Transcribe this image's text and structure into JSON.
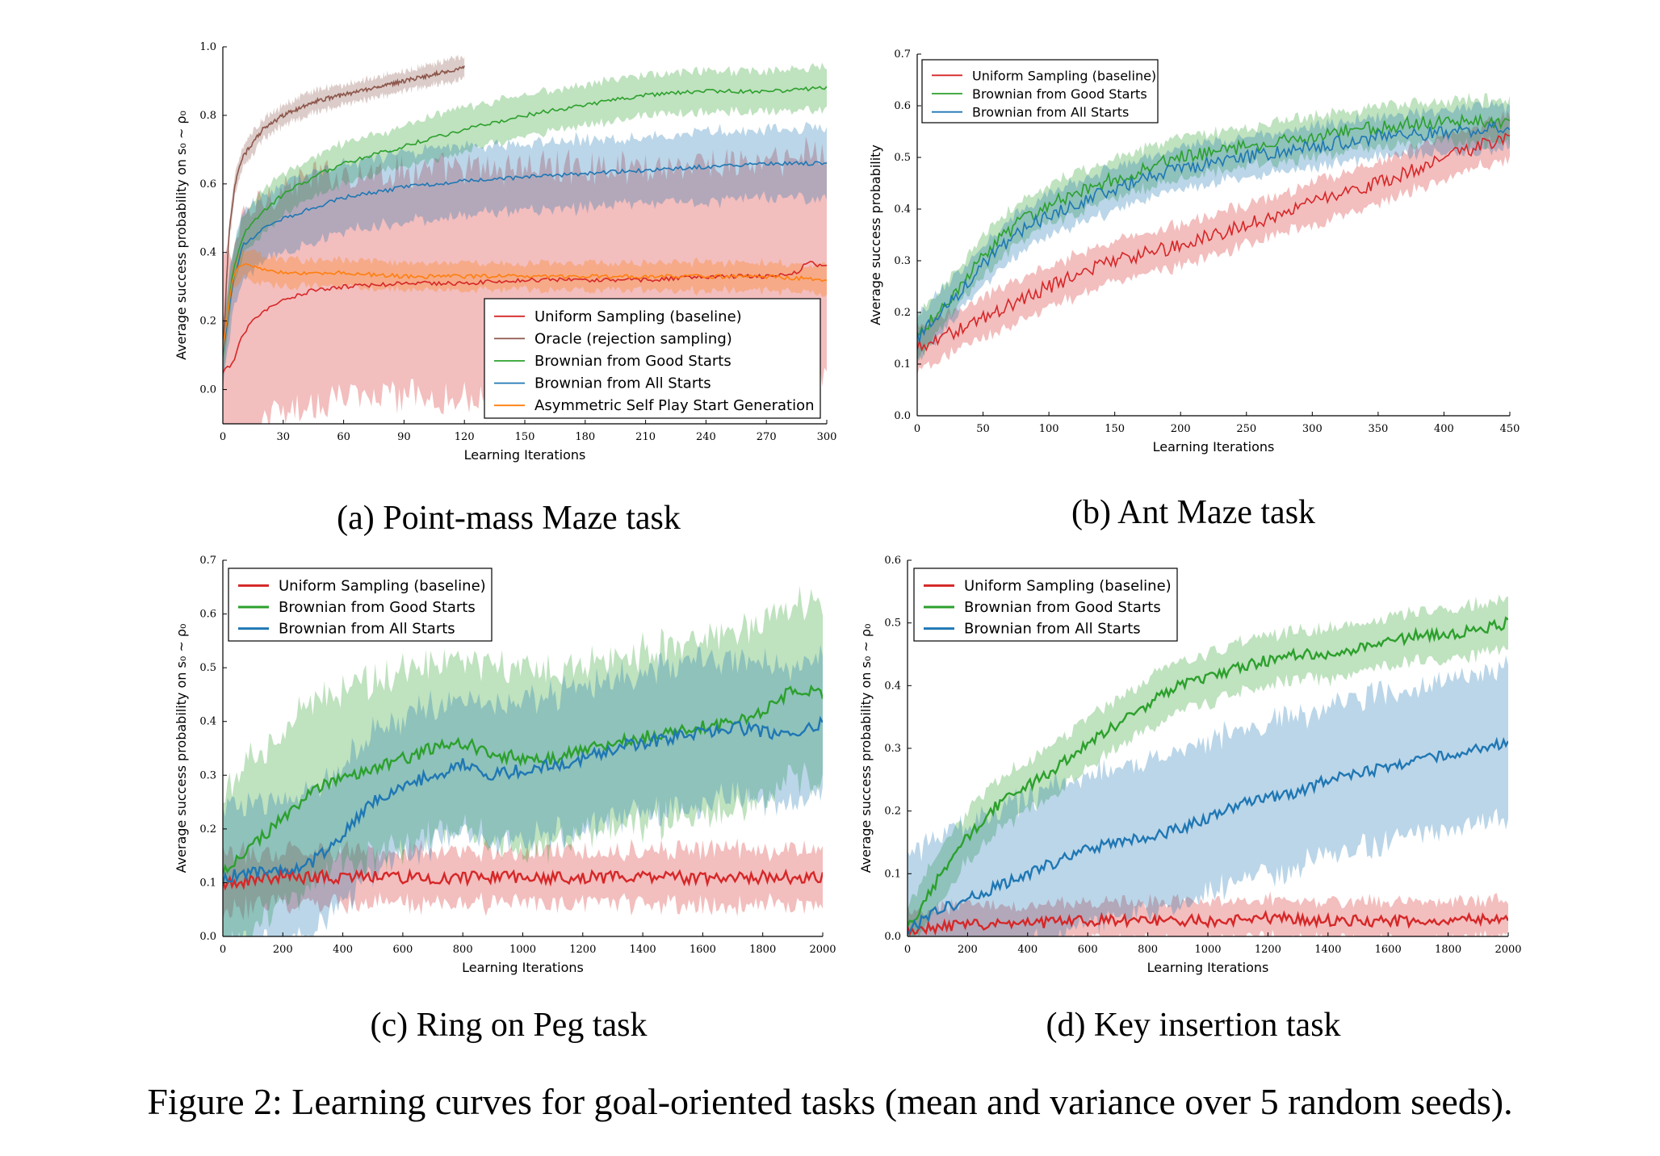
{
  "figure_caption": "Figure 2: Learning curves for goal-oriented tasks (mean and variance over 5 random seeds).",
  "colors": {
    "uniform": "#d62728",
    "oracle": "#8c564b",
    "good": "#2ca02c",
    "all": "#1f77b4",
    "asym": "#ff7f0e"
  },
  "chart_data": [
    {
      "id": "a",
      "type": "line",
      "caption": "(a) Point-mass Maze task",
      "xlabel": "Learning Iterations",
      "ylabel": "Average success probability on s₀ ~ ρ₀",
      "xlim": [
        0,
        300
      ],
      "ylim": [
        -0.1,
        1.0
      ],
      "xticks": [
        0,
        30,
        60,
        90,
        120,
        150,
        180,
        210,
        240,
        270,
        300
      ],
      "yticks": [
        0.0,
        0.2,
        0.4,
        0.6,
        0.8,
        1.0
      ],
      "ytick_labels": [
        "0.0",
        "0.2",
        "0.4",
        "0.6",
        "0.8",
        "1.0"
      ],
      "legend_position": "bottom-right",
      "series": [
        {
          "name": "Uniform Sampling (baseline)",
          "color_key": "uniform",
          "x": [
            0,
            5,
            10,
            15,
            20,
            30,
            45,
            60,
            90,
            120,
            150,
            180,
            210,
            240,
            270,
            285,
            290,
            300
          ],
          "values": [
            0.05,
            0.08,
            0.16,
            0.2,
            0.23,
            0.26,
            0.29,
            0.3,
            0.31,
            0.31,
            0.32,
            0.32,
            0.32,
            0.33,
            0.33,
            0.34,
            0.37,
            0.36
          ],
          "spread": 0.33
        },
        {
          "name": "Oracle (rejection sampling)",
          "color_key": "oracle",
          "x": [
            0,
            3,
            6,
            10,
            15,
            20,
            30,
            45,
            60,
            75,
            90,
            105,
            120
          ],
          "values": [
            0.1,
            0.45,
            0.6,
            0.68,
            0.72,
            0.76,
            0.8,
            0.84,
            0.86,
            0.88,
            0.9,
            0.92,
            0.94
          ],
          "spread": 0.03
        },
        {
          "name": "Brownian from Good Starts",
          "color_key": "good",
          "x": [
            0,
            5,
            10,
            20,
            30,
            45,
            60,
            90,
            120,
            150,
            180,
            210,
            240,
            270,
            300
          ],
          "values": [
            0.1,
            0.35,
            0.45,
            0.52,
            0.57,
            0.62,
            0.66,
            0.71,
            0.76,
            0.8,
            0.83,
            0.86,
            0.87,
            0.87,
            0.88
          ],
          "spread": 0.06
        },
        {
          "name": "Brownian from All Starts",
          "color_key": "all",
          "x": [
            0,
            5,
            10,
            20,
            30,
            45,
            60,
            90,
            120,
            150,
            180,
            210,
            240,
            270,
            300
          ],
          "values": [
            0.1,
            0.32,
            0.42,
            0.47,
            0.5,
            0.53,
            0.56,
            0.59,
            0.61,
            0.62,
            0.63,
            0.64,
            0.65,
            0.66,
            0.66
          ],
          "spread": 0.1
        },
        {
          "name": "Asymmetric Self Play Start Generation",
          "color_key": "asym",
          "x": [
            0,
            5,
            10,
            20,
            30,
            60,
            90,
            120,
            150,
            180,
            210,
            240,
            270,
            300
          ],
          "values": [
            0.12,
            0.33,
            0.37,
            0.35,
            0.34,
            0.34,
            0.33,
            0.33,
            0.33,
            0.33,
            0.33,
            0.33,
            0.33,
            0.32
          ],
          "spread": 0.04
        }
      ]
    },
    {
      "id": "b",
      "type": "line",
      "caption": "(b) Ant Maze task",
      "xlabel": "Learning Iterations",
      "ylabel": "Average success probability",
      "xlim": [
        0,
        450
      ],
      "ylim": [
        0.0,
        0.7
      ],
      "xticks": [
        0,
        50,
        100,
        150,
        200,
        250,
        300,
        350,
        400,
        450
      ],
      "yticks": [
        0.0,
        0.1,
        0.2,
        0.3,
        0.4,
        0.5,
        0.6,
        0.7
      ],
      "ytick_labels": [
        "0.0",
        "0.1",
        "0.2",
        "0.3",
        "0.4",
        "0.5",
        "0.6",
        "0.7"
      ],
      "legend_position": "top-left",
      "series": [
        {
          "name": "Uniform Sampling (baseline)",
          "color_key": "uniform",
          "x": [
            0,
            50,
            100,
            150,
            200,
            250,
            300,
            350,
            400,
            450
          ],
          "values": [
            0.13,
            0.19,
            0.25,
            0.3,
            0.33,
            0.37,
            0.41,
            0.45,
            0.5,
            0.54
          ],
          "spread": 0.04
        },
        {
          "name": "Brownian from Good Starts",
          "color_key": "good",
          "x": [
            0,
            25,
            50,
            75,
            100,
            150,
            200,
            250,
            300,
            350,
            400,
            450
          ],
          "values": [
            0.15,
            0.23,
            0.31,
            0.37,
            0.41,
            0.46,
            0.5,
            0.52,
            0.54,
            0.56,
            0.57,
            0.57
          ],
          "spread": 0.04
        },
        {
          "name": "Brownian from All Starts",
          "color_key": "all",
          "x": [
            0,
            25,
            50,
            75,
            100,
            150,
            200,
            250,
            300,
            350,
            400,
            450
          ],
          "values": [
            0.15,
            0.22,
            0.29,
            0.35,
            0.39,
            0.44,
            0.48,
            0.5,
            0.52,
            0.54,
            0.55,
            0.56
          ],
          "spread": 0.04
        }
      ]
    },
    {
      "id": "c",
      "type": "line",
      "caption": "(c) Ring on Peg task",
      "xlabel": "Learning Iterations",
      "ylabel": "Average success probability on s₀ ~ ρ₀",
      "xlim": [
        0,
        2000
      ],
      "ylim": [
        0.0,
        0.7
      ],
      "xticks": [
        0,
        200,
        400,
        600,
        800,
        1000,
        1200,
        1400,
        1600,
        1800,
        2000
      ],
      "yticks": [
        0.0,
        0.1,
        0.2,
        0.3,
        0.4,
        0.5,
        0.6,
        0.7
      ],
      "ytick_labels": [
        "0.0",
        "0.1",
        "0.2",
        "0.3",
        "0.4",
        "0.5",
        "0.6",
        "0.7"
      ],
      "legend_position": "top-left",
      "series": [
        {
          "name": "Uniform Sampling (baseline)",
          "color_key": "uniform",
          "x": [
            0,
            200,
            400,
            600,
            800,
            1000,
            1200,
            1400,
            1600,
            1800,
            2000
          ],
          "values": [
            0.1,
            0.11,
            0.11,
            0.11,
            0.11,
            0.11,
            0.11,
            0.11,
            0.11,
            0.11,
            0.11
          ],
          "spread": 0.05
        },
        {
          "name": "Brownian from Good Starts",
          "color_key": "good",
          "x": [
            0,
            100,
            200,
            300,
            400,
            500,
            600,
            700,
            800,
            900,
            1000,
            1100,
            1200,
            1300,
            1400,
            1500,
            1600,
            1700,
            1800,
            1900,
            2000
          ],
          "values": [
            0.12,
            0.17,
            0.22,
            0.27,
            0.3,
            0.31,
            0.33,
            0.35,
            0.36,
            0.34,
            0.33,
            0.33,
            0.35,
            0.36,
            0.37,
            0.38,
            0.39,
            0.4,
            0.42,
            0.46,
            0.45
          ],
          "spread": 0.16
        },
        {
          "name": "Brownian from All Starts",
          "color_key": "all",
          "x": [
            0,
            100,
            200,
            300,
            400,
            500,
            600,
            700,
            800,
            900,
            1000,
            1100,
            1200,
            1300,
            1400,
            1500,
            1600,
            1700,
            1800,
            1900,
            2000
          ],
          "values": [
            0.11,
            0.12,
            0.12,
            0.14,
            0.19,
            0.25,
            0.28,
            0.3,
            0.32,
            0.3,
            0.31,
            0.32,
            0.33,
            0.35,
            0.36,
            0.37,
            0.38,
            0.39,
            0.38,
            0.37,
            0.4
          ],
          "spread": 0.13
        }
      ]
    },
    {
      "id": "d",
      "type": "line",
      "caption": "(d) Key insertion task",
      "xlabel": "Learning Iterations",
      "ylabel": "Average success probability on s₀ ~ ρ₀",
      "xlim": [
        0,
        2000
      ],
      "ylim": [
        0.0,
        0.6
      ],
      "xticks": [
        0,
        200,
        400,
        600,
        800,
        1000,
        1200,
        1400,
        1600,
        1800,
        2000
      ],
      "yticks": [
        0.0,
        0.1,
        0.2,
        0.3,
        0.4,
        0.5,
        0.6
      ],
      "ytick_labels": [
        "0.0",
        "0.1",
        "0.2",
        "0.3",
        "0.4",
        "0.5",
        "0.6"
      ],
      "legend_position": "top-left",
      "series": [
        {
          "name": "Uniform Sampling (baseline)",
          "color_key": "uniform",
          "x": [
            0,
            200,
            400,
            600,
            800,
            1000,
            1200,
            1400,
            1600,
            1800,
            2000
          ],
          "values": [
            0.01,
            0.02,
            0.02,
            0.025,
            0.025,
            0.025,
            0.03,
            0.025,
            0.025,
            0.025,
            0.03
          ],
          "spread": 0.03
        },
        {
          "name": "Brownian from Good Starts",
          "color_key": "good",
          "x": [
            0,
            100,
            200,
            300,
            400,
            500,
            600,
            700,
            800,
            900,
            1000,
            1100,
            1200,
            1300,
            1400,
            1500,
            1600,
            1700,
            1800,
            1900,
            2000
          ],
          "values": [
            0.01,
            0.09,
            0.16,
            0.21,
            0.24,
            0.27,
            0.31,
            0.34,
            0.37,
            0.4,
            0.41,
            0.43,
            0.44,
            0.45,
            0.45,
            0.46,
            0.47,
            0.48,
            0.48,
            0.49,
            0.5
          ],
          "spread": 0.04
        },
        {
          "name": "Brownian from All Starts",
          "color_key": "all",
          "x": [
            0,
            100,
            200,
            300,
            400,
            500,
            600,
            700,
            800,
            900,
            1000,
            1100,
            1200,
            1300,
            1400,
            1500,
            1600,
            1700,
            1800,
            1900,
            2000
          ],
          "values": [
            0.01,
            0.04,
            0.06,
            0.08,
            0.1,
            0.12,
            0.14,
            0.15,
            0.16,
            0.17,
            0.19,
            0.21,
            0.22,
            0.23,
            0.25,
            0.26,
            0.27,
            0.28,
            0.29,
            0.3,
            0.31
          ],
          "spread": 0.12
        }
      ]
    }
  ]
}
